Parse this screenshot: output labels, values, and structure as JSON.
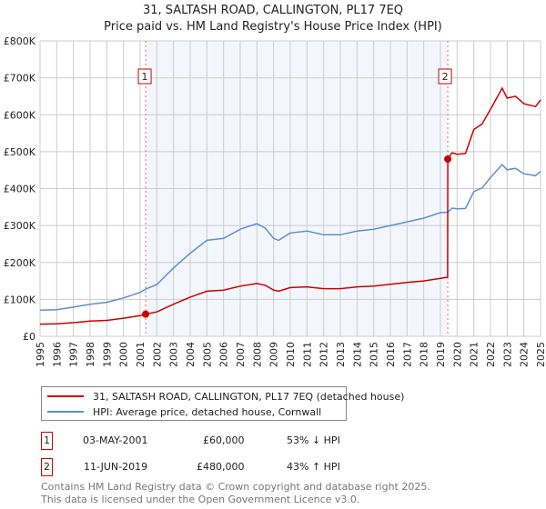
{
  "title": "31, SALTASH ROAD, CALLINGTON, PL17 7EQ",
  "subtitle": "Price paid vs. HM Land Registry's House Price Index (HPI)",
  "chart_data": {
    "type": "line",
    "xlim": [
      1995,
      2025
    ],
    "ylim": [
      0,
      800000
    ],
    "yticks": [
      0,
      100000,
      200000,
      300000,
      400000,
      500000,
      600000,
      700000,
      800000
    ],
    "ytick_labels": [
      "£0",
      "£100K",
      "£200K",
      "£300K",
      "£400K",
      "£500K",
      "£600K",
      "£700K",
      "£800K"
    ],
    "xticks": [
      1995,
      1996,
      1997,
      1998,
      1999,
      2000,
      2001,
      2002,
      2003,
      2004,
      2005,
      2006,
      2007,
      2008,
      2009,
      2010,
      2011,
      2012,
      2013,
      2014,
      2015,
      2016,
      2017,
      2018,
      2019,
      2020,
      2021,
      2022,
      2023,
      2024,
      2025
    ],
    "grid": true,
    "shaded_range": [
      2001.33,
      2019.44
    ],
    "series": [
      {
        "name": "31, SALTASH ROAD, CALLINGTON, PL17 7EQ (detached house)",
        "color": "#cc0000",
        "x": [
          1995,
          1996,
          1997,
          1998,
          1999,
          2000,
          2001,
          2001.33,
          2002,
          2003,
          2004,
          2005,
          2006,
          2007,
          2008,
          2008.5,
          2009,
          2009.3,
          2010,
          2011,
          2012,
          2013,
          2014,
          2015,
          2016,
          2017,
          2018,
          2019,
          2019.43,
          2019.44,
          2019.7,
          2020,
          2020.5,
          2021,
          2021.5,
          2022,
          2022.7,
          2023,
          2023.5,
          2024,
          2024.7,
          2025
        ],
        "y": [
          33000,
          34000,
          37000,
          41000,
          43000,
          49000,
          56000,
          60000,
          66000,
          87000,
          106000,
          122000,
          125000,
          136000,
          143000,
          138000,
          125000,
          122000,
          132000,
          134000,
          129000,
          129000,
          134000,
          136000,
          141000,
          146000,
          150000,
          157000,
          160000,
          480000,
          497000,
          493000,
          495000,
          560000,
          575000,
          615000,
          672000,
          645000,
          650000,
          630000,
          622000,
          640000
        ]
      },
      {
        "name": "HPI: Average price, detached house, Cornwall",
        "color": "#5b8fd4",
        "x": [
          1995,
          1996,
          1997,
          1998,
          1999,
          2000,
          2001,
          2001.33,
          2002,
          2003,
          2004,
          2005,
          2006,
          2007,
          2008,
          2008.5,
          2009,
          2009.3,
          2010,
          2011,
          2012,
          2013,
          2014,
          2015,
          2016,
          2017,
          2018,
          2019,
          2019.44,
          2019.7,
          2020,
          2020.5,
          2021,
          2021.5,
          2022,
          2022.7,
          2023,
          2023.5,
          2024,
          2024.7,
          2025
        ],
        "y": [
          71000,
          72000,
          79000,
          87000,
          92000,
          104000,
          119000,
          128000,
          140000,
          185000,
          225000,
          260000,
          265000,
          290000,
          305000,
          293000,
          265000,
          260000,
          280000,
          285000,
          275000,
          275000,
          285000,
          290000,
          300000,
          310000,
          320000,
          335000,
          336000,
          347000,
          345000,
          346000,
          392000,
          402000,
          430000,
          465000,
          451000,
          455000,
          440000,
          435000,
          447000
        ]
      }
    ],
    "annotations": [
      {
        "label": "1",
        "x": 2001.33,
        "y": 60000
      },
      {
        "label": "2",
        "x": 2019.44,
        "y": 480000
      }
    ]
  },
  "legend": [
    {
      "label": "31, SALTASH ROAD, CALLINGTON, PL17 7EQ (detached house)",
      "color": "#cc0000"
    },
    {
      "label": "HPI: Average price, detached house, Cornwall",
      "color": "#5b8fd4"
    }
  ],
  "sales": [
    {
      "num": "1",
      "date": "03-MAY-2001",
      "price": "£60,000",
      "hpi": "53% ↓ HPI"
    },
    {
      "num": "2",
      "date": "11-JUN-2019",
      "price": "£480,000",
      "hpi": "43% ↑ HPI"
    }
  ],
  "footer": [
    "Contains HM Land Registry data © Crown copyright and database right 2025.",
    "This data is licensed under the Open Government Licence v3.0."
  ]
}
